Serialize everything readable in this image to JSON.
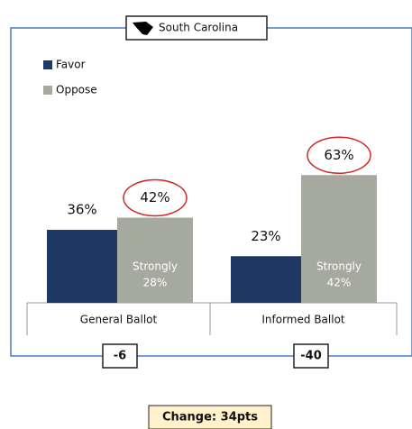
{
  "chart_data": {
    "type": "bar",
    "title": "South Carolina",
    "categories": [
      "General Ballot",
      "Informed Ballot"
    ],
    "series": [
      {
        "name": "Favor",
        "color": "#1f3864",
        "values": [
          36,
          23
        ],
        "value_labels": [
          "36%",
          "23%"
        ]
      },
      {
        "name": "Oppose",
        "color": "#a6a99d",
        "values": [
          42,
          63
        ],
        "value_labels": [
          "42%",
          "63%"
        ],
        "inner_label": "Strongly",
        "inner_values": [
          28,
          42
        ],
        "inner_value_labels": [
          "28%",
          "42%"
        ]
      }
    ],
    "ylim": [
      0,
      70
    ],
    "differences": [
      -6,
      -40
    ],
    "annotation": "Change: 34pts"
  }
}
